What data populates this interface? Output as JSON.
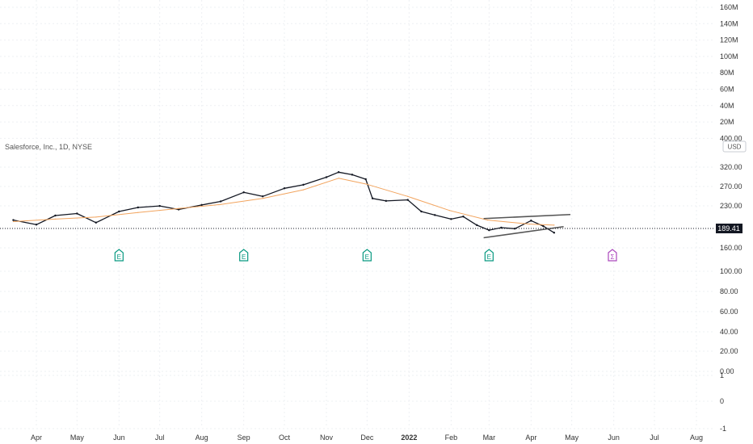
{
  "chart_data": {
    "type": "line",
    "title": "Salesforce, Inc., 1D, NYSE",
    "currency_button": "USD",
    "last_price": "189.41",
    "x_ticks": [
      "Apr",
      "May",
      "Jun",
      "Jul",
      "Aug",
      "Sep",
      "Oct",
      "Nov",
      "Dec",
      "2022",
      "Feb",
      "Mar",
      "Apr",
      "May",
      "Jun",
      "Jul",
      "Aug"
    ],
    "volume_axis_labels": [
      "160M",
      "140M",
      "120M",
      "100M",
      "80M",
      "60M",
      "40M",
      "20M",
      "400.00"
    ],
    "price_axis_labels": [
      "320.00",
      "270.00",
      "230.00",
      "160.00"
    ],
    "lower_axis_labels": [
      "100.00",
      "80.00",
      "60.00",
      "40.00",
      "20.00",
      "0.00",
      "1",
      "0",
      "-1"
    ],
    "series": [
      {
        "name": "",
        "color": "#131722",
        "x": [
          "2021-03-15",
          "2021-04-01",
          "2021-04-15",
          "2021-05-01",
          "2021-05-15",
          "2021-06-01",
          "2021-06-15",
          "2021-07-01",
          "2021-07-15",
          "2021-08-01",
          "2021-08-15",
          "2021-09-01",
          "2021-09-15",
          "2021-10-01",
          "2021-10-15",
          "2021-11-01",
          "2021-11-10",
          "2021-11-20",
          "2021-11-30",
          "2021-12-05",
          "2021-12-15",
          "2021-12-31",
          "2022-01-10",
          "2022-01-20",
          "2022-02-01",
          "2022-02-10",
          "2022-02-20",
          "2022-03-01",
          "2022-03-10",
          "2022-03-20",
          "2022-04-01",
          "2022-04-10",
          "2022-04-18"
        ],
        "values": [
          215,
          206,
          224,
          228,
          210,
          232,
          240,
          243,
          236,
          245,
          252,
          270,
          262,
          278,
          285,
          300,
          310,
          305,
          296,
          258,
          253,
          255,
          232,
          225,
          217,
          222,
          205,
          195,
          200,
          198,
          214,
          203,
          190
        ]
      },
      {
        "name": "",
        "color": "#f2a45e",
        "x": [
          "2021-03-15",
          "2021-04-15",
          "2021-05-15",
          "2021-06-15",
          "2021-07-15",
          "2021-08-15",
          "2021-09-15",
          "2021-10-15",
          "2021-11-10",
          "2021-12-01",
          "2021-12-31",
          "2022-01-31",
          "2022-02-28",
          "2022-03-31",
          "2022-04-18"
        ],
        "values": [
          212,
          217,
          221,
          230,
          238,
          246,
          258,
          275,
          298,
          286,
          262,
          234,
          215,
          207,
          205
        ]
      }
    ],
    "trendlines": [
      {
        "x": [
          "2022-02-25",
          "2022-04-30"
        ],
        "values": [
          218,
          226
        ]
      },
      {
        "x": [
          "2022-02-25",
          "2022-04-25"
        ],
        "values": [
          180,
          202
        ]
      }
    ],
    "events": [
      {
        "x": "2021-06-01",
        "symbol": "E",
        "color": "#089981"
      },
      {
        "x": "2021-09-01",
        "symbol": "E",
        "color": "#089981"
      },
      {
        "x": "2021-12-01",
        "symbol": "E",
        "color": "#089981"
      },
      {
        "x": "2022-03-01",
        "symbol": "E",
        "color": "#089981"
      },
      {
        "x": "2022-05-31",
        "symbol": "Σ",
        "color": "#ab47bc"
      }
    ],
    "grid": true,
    "colors": {
      "price": "#131722",
      "ma": "#f2a45e",
      "earnings": "#089981",
      "dividend": "#ab47bc",
      "last_price_bg": "#131722"
    }
  }
}
